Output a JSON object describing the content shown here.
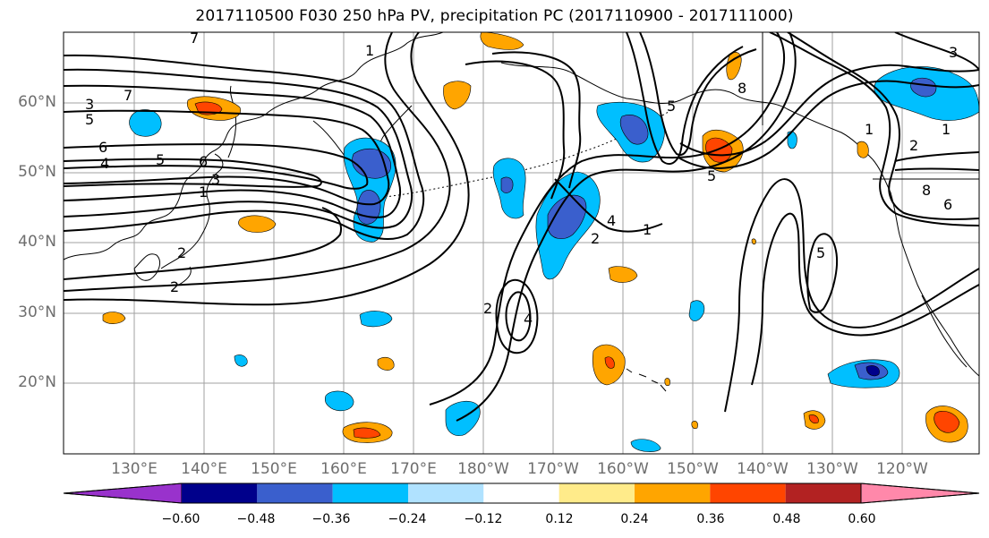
{
  "title": "2017110500 F030 250 hPa PV, precipitation PC (2017110900 - 2017111000)",
  "lat_labels": [
    "60°N",
    "50°N",
    "40°N",
    "30°N",
    "20°N"
  ],
  "lon_labels": [
    "130°E",
    "140°E",
    "150°E",
    "160°E",
    "170°E",
    "180°W",
    "170°W",
    "160°W",
    "150°W",
    "140°W",
    "130°W",
    "120°W"
  ],
  "contour_labels": [
    "7",
    "3",
    "5",
    "6",
    "4",
    "5",
    "6",
    "3",
    "1",
    "2",
    "2",
    "1",
    "2",
    "4",
    "2",
    "1",
    "5",
    "8",
    "5",
    "1",
    "2",
    "8",
    "6",
    "5",
    "1",
    "3",
    "7",
    "4"
  ],
  "colorbar": {
    "colors": [
      "#9932cc",
      "#00008b",
      "#3a5fcd",
      "#00bfff",
      "#b0e2ff",
      "#ffffff",
      "#ffeb8a",
      "#ffa500",
      "#ff4500",
      "#b22222",
      "#ff88aa"
    ],
    "ticks": [
      "−0.60",
      "−0.48",
      "−0.36",
      "−0.24",
      "−0.12",
      "0.12",
      "0.24",
      "0.36",
      "0.48",
      "0.60"
    ]
  },
  "colors": {
    "grid": "#a0a0a0",
    "contour": "#000000",
    "axis_text": "#6e6e6e"
  }
}
